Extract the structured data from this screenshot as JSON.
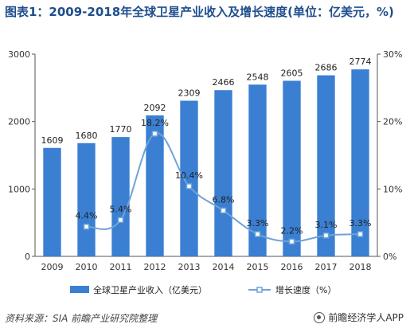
{
  "title": "图表1：2009-2018年全球卫星产业收入及增长速度(单位：亿美元，%)",
  "source_note": "资料来源：SIA 前瞻产业研究院整理",
  "brand": "前瞻经济学人APP",
  "colors": {
    "bar": "#3a7fd2",
    "line": "#6fa3d8",
    "axis": "#555555",
    "title": "#1f4e8c"
  },
  "chart_data": {
    "type": "bar",
    "categories": [
      "2009",
      "2010",
      "2011",
      "2012",
      "2013",
      "2014",
      "2015",
      "2016",
      "2017",
      "2018"
    ],
    "series": [
      {
        "name": "全球卫星产业收入（亿美元）",
        "type": "bar",
        "axis": "left",
        "values": [
          1609,
          1680,
          1770,
          2092,
          2309,
          2466,
          2548,
          2605,
          2686,
          2774
        ],
        "labels": [
          "1609",
          "1680",
          "1770",
          "2092",
          "2309",
          "2466",
          "2548",
          "2605",
          "2686",
          "2774"
        ]
      },
      {
        "name": "增长速度（%）",
        "type": "line",
        "axis": "right",
        "values": [
          null,
          4.4,
          5.4,
          18.2,
          10.4,
          6.8,
          3.3,
          2.2,
          3.1,
          3.3
        ],
        "labels": [
          "",
          "4.4%",
          "5.4%",
          "18.2%",
          "10.4%",
          "6.8%",
          "3.3%",
          "2.2%",
          "3.1%",
          "3.3%"
        ]
      }
    ],
    "y_left": {
      "lim": [
        0,
        3000
      ],
      "ticks": [
        0,
        1000,
        2000,
        3000
      ],
      "tick_labels": [
        "0",
        "1000",
        "2000",
        "3000"
      ]
    },
    "y_right": {
      "lim": [
        0,
        30
      ],
      "ticks": [
        0,
        10,
        20,
        30
      ],
      "tick_labels": [
        "0%",
        "10%",
        "20%",
        "30%"
      ]
    },
    "grid": false,
    "legend": "bottom"
  }
}
